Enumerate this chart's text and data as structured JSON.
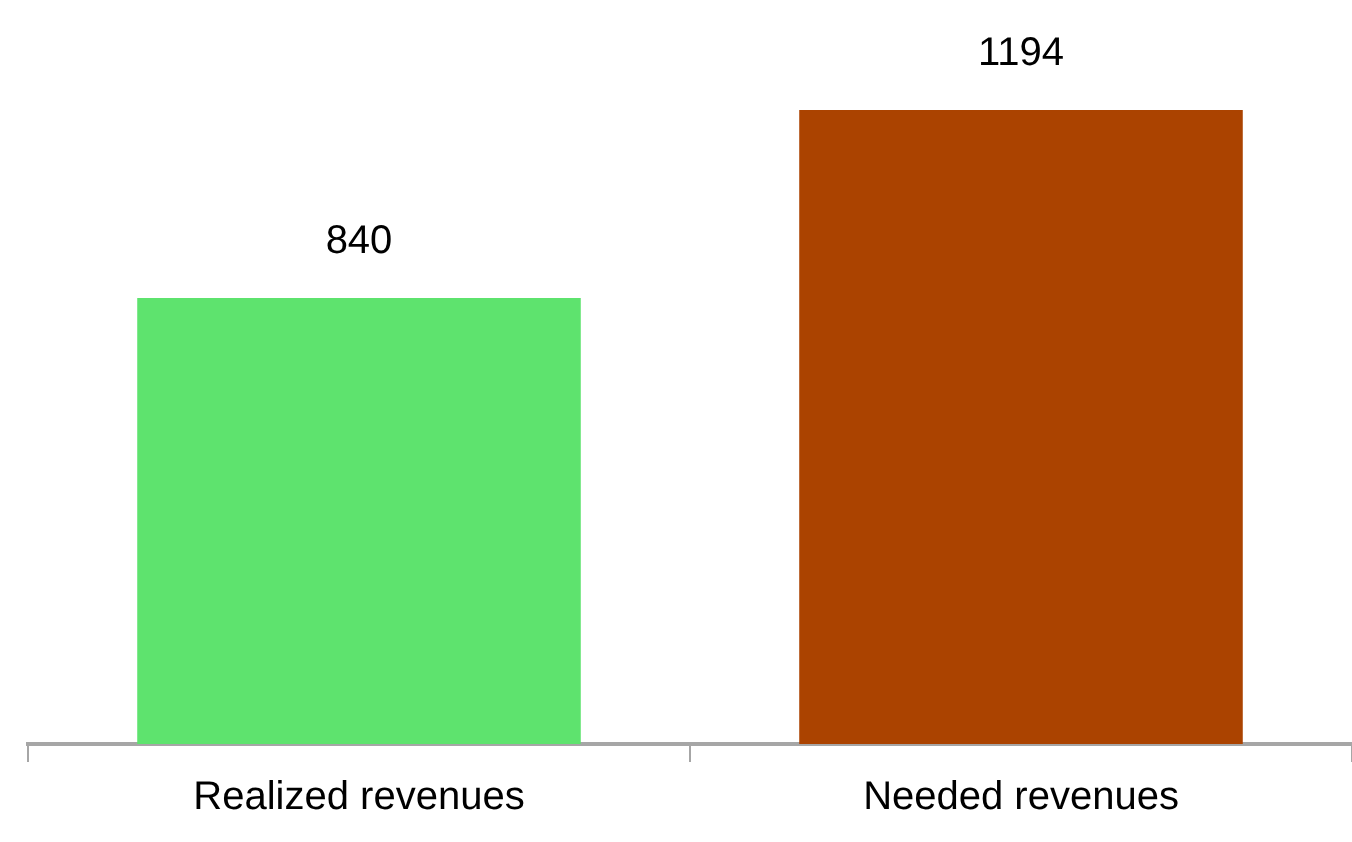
{
  "chart_data": {
    "type": "bar",
    "categories": [
      "Realized revenues",
      "Needed revenues"
    ],
    "values": [
      840,
      1194
    ],
    "colors": [
      "#5ee36e",
      "#ab4300"
    ],
    "data_labels": true,
    "grid": false,
    "legend": false
  }
}
